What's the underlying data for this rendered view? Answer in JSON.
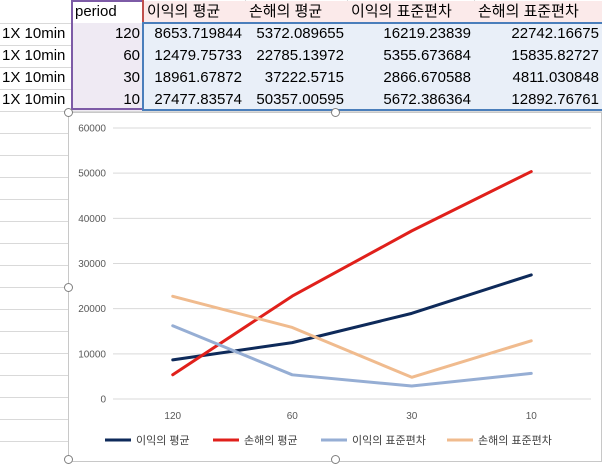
{
  "sheet": {
    "header": [
      "period",
      "이익의 평균",
      "손해의 평균",
      "이익의 표준편차",
      "손해의 표준편차"
    ],
    "rows": [
      {
        "label": "1X 10min",
        "period": "120",
        "profit_mean": "8653.719844",
        "loss_mean": "5372.089655",
        "profit_std": "16219.23839",
        "loss_std": "22742.16675"
      },
      {
        "label": "1X 10min",
        "period": "60",
        "profit_mean": "12479.75733",
        "loss_mean": "22785.13972",
        "profit_std": "5355.673684",
        "loss_std": "15835.82727"
      },
      {
        "label": "1X 10min",
        "period": "30",
        "profit_mean": "18961.67872",
        "loss_mean": "37222.5715",
        "profit_std": "2866.670588",
        "loss_std": "4811.030848"
      },
      {
        "label": "1X 10min",
        "period": "10",
        "profit_mean": "27477.83574",
        "loss_mean": "50357.00595",
        "profit_std": "5672.386364",
        "loss_std": "12892.76761"
      }
    ]
  },
  "chart_data": {
    "type": "line",
    "categories": [
      "120",
      "60",
      "30",
      "10"
    ],
    "series": [
      {
        "name": "이익의 평균",
        "color": "#0e2a5a",
        "values": [
          8653.719844,
          12479.75733,
          18961.67872,
          27477.83574
        ]
      },
      {
        "name": "손해의 평균",
        "color": "#e0201b",
        "values": [
          5372.089655,
          22785.13972,
          37222.5715,
          50357.00595
        ]
      },
      {
        "name": "이익의 표준편차",
        "color": "#96aed4",
        "values": [
          16219.23839,
          5355.673684,
          2866.670588,
          5672.386364
        ]
      },
      {
        "name": "손해의 표준편차",
        "color": "#f0bb8e",
        "values": [
          22742.16675,
          15835.82727,
          4811.030848,
          12892.76761
        ]
      }
    ],
    "ylim": [
      0,
      60000
    ],
    "yticks": [
      "0",
      "10000",
      "20000",
      "30000",
      "40000",
      "50000",
      "60000"
    ],
    "grid": true,
    "legend": "bottom"
  }
}
